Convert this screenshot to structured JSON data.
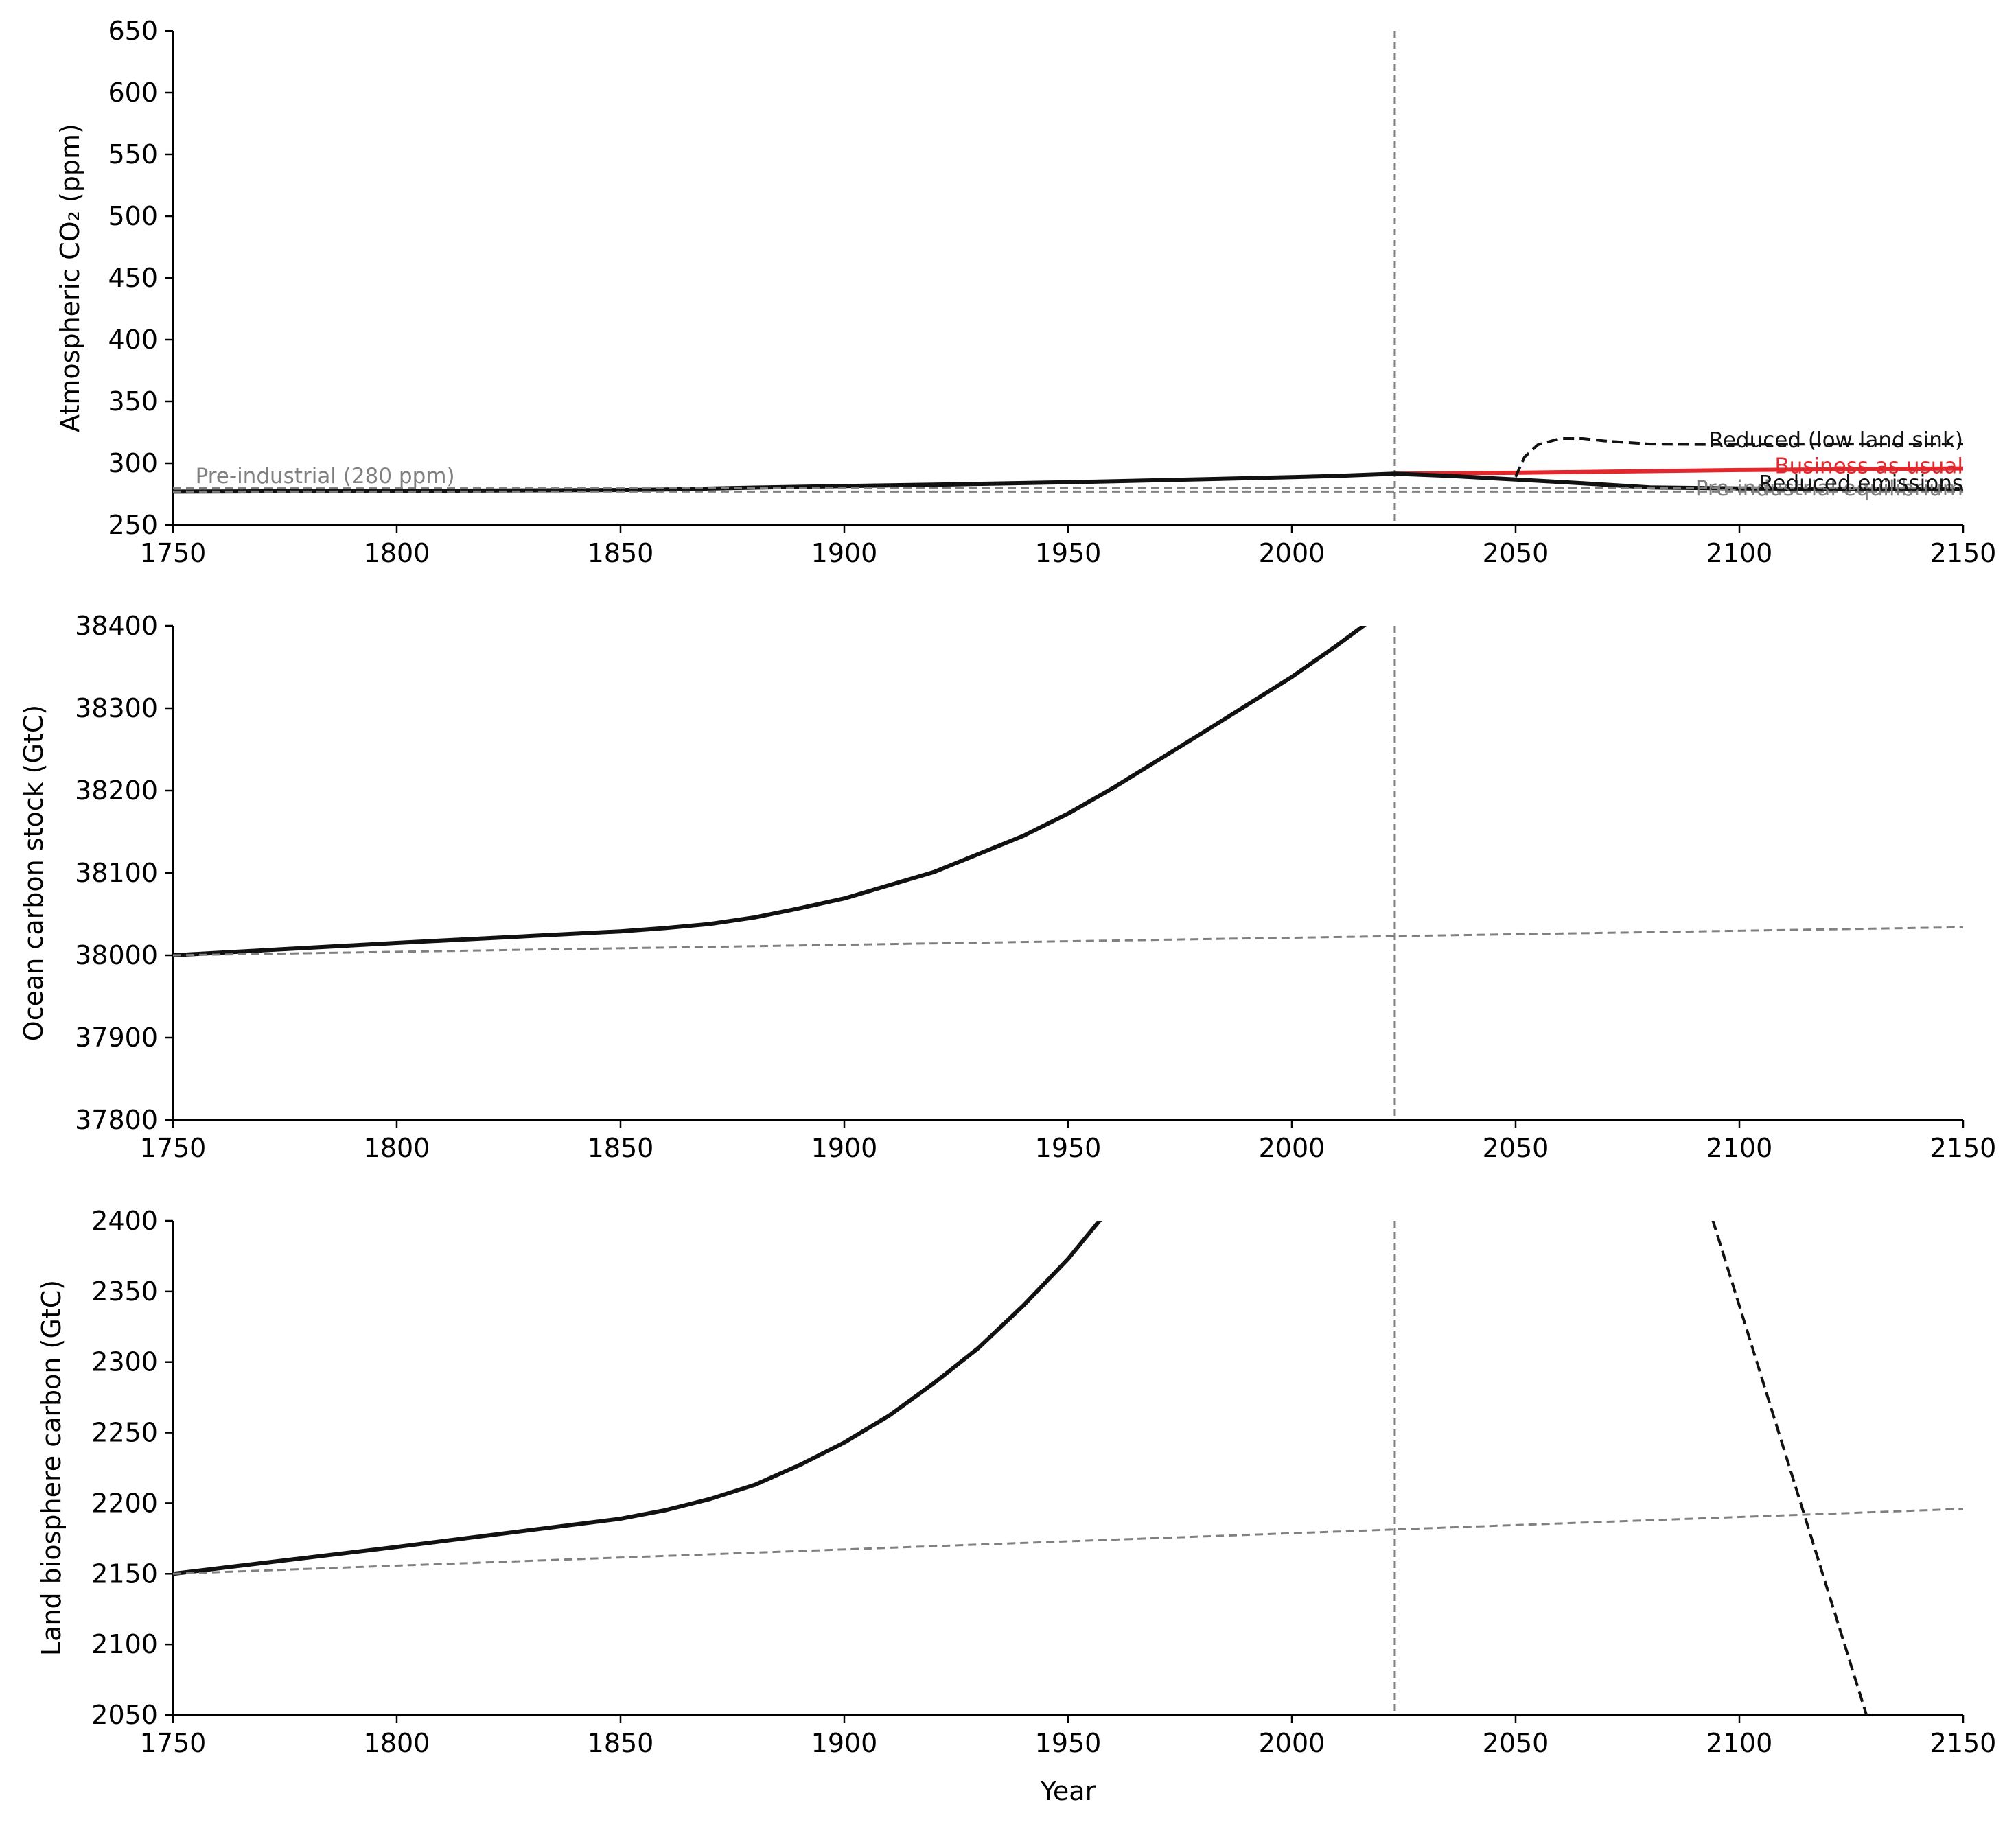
{
  "chart_data": [
    {
      "type": "line",
      "title": "",
      "xlabel": "",
      "ylabel": "Atmospheric CO₂ (ppm)",
      "xlim": [
        1750,
        2150
      ],
      "ylim": [
        250,
        650
      ],
      "xticks": [
        1750,
        1800,
        1850,
        1900,
        1950,
        2000,
        2050,
        2100,
        2150
      ],
      "yticks": [
        250,
        300,
        350,
        400,
        450,
        500,
        550,
        600,
        650
      ],
      "grid": false,
      "vline_x": 2023,
      "series": [
        {
          "color": "#e3282d",
          "style": "solid",
          "width": 6,
          "x": [
            2023,
            2050,
            2075,
            2100,
            2125,
            2150
          ],
          "y": [
            291.5,
            292.3,
            293.4,
            294.5,
            295.2,
            295.8
          ]
        },
        {
          "color": "#111111",
          "style": "solid",
          "width": 6,
          "x": [
            1750,
            1800,
            1850,
            1860,
            1880,
            1900,
            1920,
            1950,
            1980,
            2000,
            2010,
            2023,
            2035,
            2050,
            2065,
            2080,
            2100,
            2125,
            2150
          ],
          "y": [
            277,
            277.6,
            278.3,
            278.8,
            280.3,
            281.5,
            282.6,
            284.6,
            287,
            288.7,
            289.7,
            291.5,
            289.8,
            286.8,
            283.8,
            280.4,
            279.6,
            279.3,
            279.2
          ]
        },
        {
          "color": "#111111",
          "style": "dashed",
          "width": 4,
          "x": [
            2050,
            2052,
            2055,
            2060,
            2065,
            2070,
            2080,
            2090,
            2100,
            2125,
            2150
          ],
          "y": [
            289,
            305,
            315,
            320,
            320,
            318,
            315.5,
            315.2,
            315.3,
            315.5,
            315.5
          ]
        },
        {
          "color": "#808080",
          "style": "dashed",
          "width": 3,
          "x": [
            1750,
            2150
          ],
          "y": [
            280,
            280
          ]
        },
        {
          "color": "#808080",
          "style": "dashed",
          "width": 3,
          "x": [
            1750,
            2150
          ],
          "y": [
            277,
            277
          ]
        }
      ],
      "annotations": [
        {
          "text": "Pre-industrial (280 ppm)",
          "color": "#808080",
          "x": 1755,
          "y": 284,
          "anchor": "start"
        },
        {
          "text": "Reduced (low land sink)",
          "color": "#111111",
          "x": 2150,
          "y": 313,
          "anchor": "end"
        },
        {
          "text": "Business as usual",
          "color": "#e3282d",
          "x": 2150,
          "y": 292,
          "anchor": "end"
        },
        {
          "text": "Pre-industrial equilibrium",
          "color": "#808080",
          "x": 2150,
          "y": 274,
          "anchor": "end"
        },
        {
          "text": "Reduced emissions",
          "color": "#111111",
          "x": 2150,
          "y": 278,
          "anchor": "end"
        }
      ]
    },
    {
      "type": "line",
      "title": "",
      "xlabel": "",
      "ylabel": "Ocean carbon stock (GtC)",
      "xlim": [
        1750,
        2150
      ],
      "ylim": [
        37800,
        38400
      ],
      "xticks": [
        1750,
        1800,
        1850,
        1900,
        1950,
        2000,
        2050,
        2100,
        2150
      ],
      "yticks": [
        37800,
        37900,
        38000,
        38100,
        38200,
        38300,
        38400
      ],
      "grid": false,
      "vline_x": 2023,
      "series": [
        {
          "color": "#111111",
          "style": "solid",
          "width": 6,
          "x": [
            1750,
            1800,
            1850,
            1860,
            1870,
            1880,
            1890,
            1900,
            1920,
            1940,
            1950,
            1960,
            1980,
            2000,
            2010,
            2016,
            2030
          ],
          "y": [
            38000,
            38015,
            38029,
            38033,
            38038,
            38046,
            38057,
            38069,
            38101,
            38145,
            38172,
            38203,
            38270,
            38338,
            38376,
            38400,
            38470
          ]
        },
        {
          "color": "#808080",
          "style": "dashed",
          "width": 3,
          "x": [
            1750,
            2150
          ],
          "y": [
            38000,
            38034
          ]
        }
      ]
    },
    {
      "type": "line",
      "title": "",
      "xlabel": "Year",
      "ylabel": "Land biosphere carbon (GtC)",
      "xlim": [
        1750,
        2150
      ],
      "ylim": [
        2050,
        2400
      ],
      "xticks": [
        1750,
        1800,
        1850,
        1900,
        1950,
        2000,
        2050,
        2100,
        2150
      ],
      "yticks": [
        2050,
        2100,
        2150,
        2200,
        2250,
        2300,
        2350,
        2400
      ],
      "grid": false,
      "vline_x": 2023,
      "series": [
        {
          "color": "#111111",
          "style": "solid",
          "width": 6,
          "x": [
            1750,
            1800,
            1850,
            1860,
            1870,
            1880,
            1890,
            1900,
            1910,
            1920,
            1930,
            1940,
            1950,
            1957,
            1970
          ],
          "y": [
            2150,
            2169,
            2189,
            2195,
            2203,
            2213,
            2227,
            2243,
            2262,
            2285,
            2310,
            2340,
            2373,
            2400,
            2450
          ]
        },
        {
          "color": "#111111",
          "style": "dashed",
          "width": 4,
          "x": [
            2094,
            2128.5
          ],
          "y": [
            2401,
            2049
          ]
        },
        {
          "color": "#808080",
          "style": "dashed",
          "width": 3,
          "x": [
            1750,
            2150
          ],
          "y": [
            2150,
            2196
          ]
        }
      ]
    }
  ]
}
